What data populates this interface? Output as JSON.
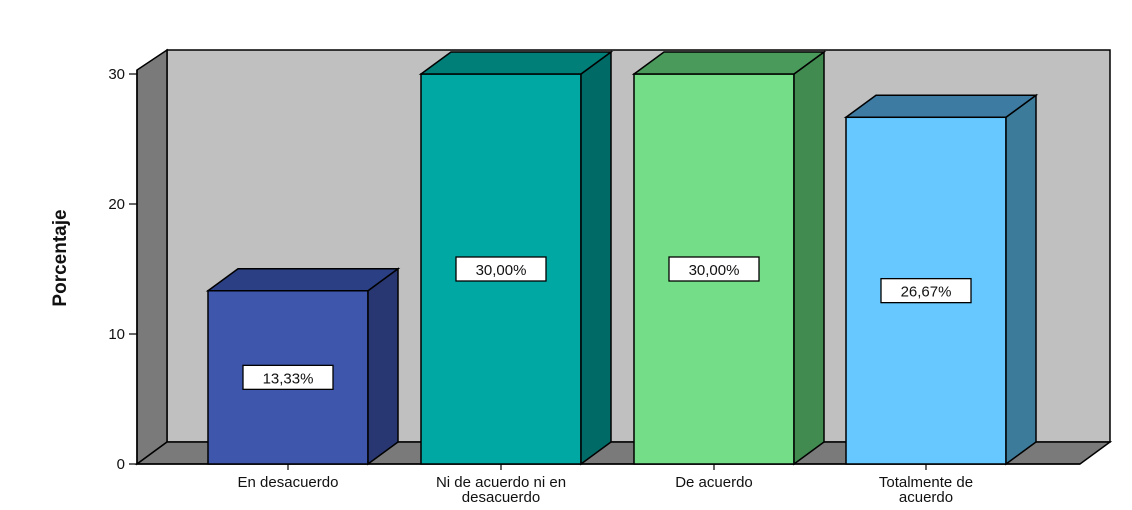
{
  "chart_data": {
    "type": "bar",
    "categories": [
      "En desacuerdo",
      "Ni de acuerdo ni en desacuerdo",
      "De acuerdo",
      "Totalmente de acuerdo"
    ],
    "category_tick_labels": [
      [
        "En desacuerdo"
      ],
      [
        "Ni de acuerdo ni en",
        "desacuerdo"
      ],
      [
        "De acuerdo"
      ],
      [
        "Totalmente de",
        "acuerdo"
      ]
    ],
    "values": [
      13.33,
      30.0,
      30.0,
      26.67
    ],
    "data_labels": [
      "13,33%",
      "30,00%",
      "30,00%",
      "26,67%"
    ],
    "bar_colors": [
      {
        "front": "#3e56ac",
        "side": "#283771",
        "top": "#2b3f84"
      },
      {
        "front": "#00a8a3",
        "side": "#006a66",
        "top": "#007f79"
      },
      {
        "front": "#74dd87",
        "side": "#418a50",
        "top": "#4a9a5b"
      },
      {
        "front": "#67c8ff",
        "side": "#3c7b9a",
        "top": "#3e7ba2"
      }
    ],
    "title": "",
    "xlabel": "",
    "ylabel": "Porcentaje",
    "ylim": [
      0,
      30
    ],
    "yticks": [
      0,
      10,
      20,
      30
    ],
    "ytick_labels": [
      "0",
      "10",
      "20",
      "30"
    ],
    "grid": false,
    "legend": "none"
  }
}
